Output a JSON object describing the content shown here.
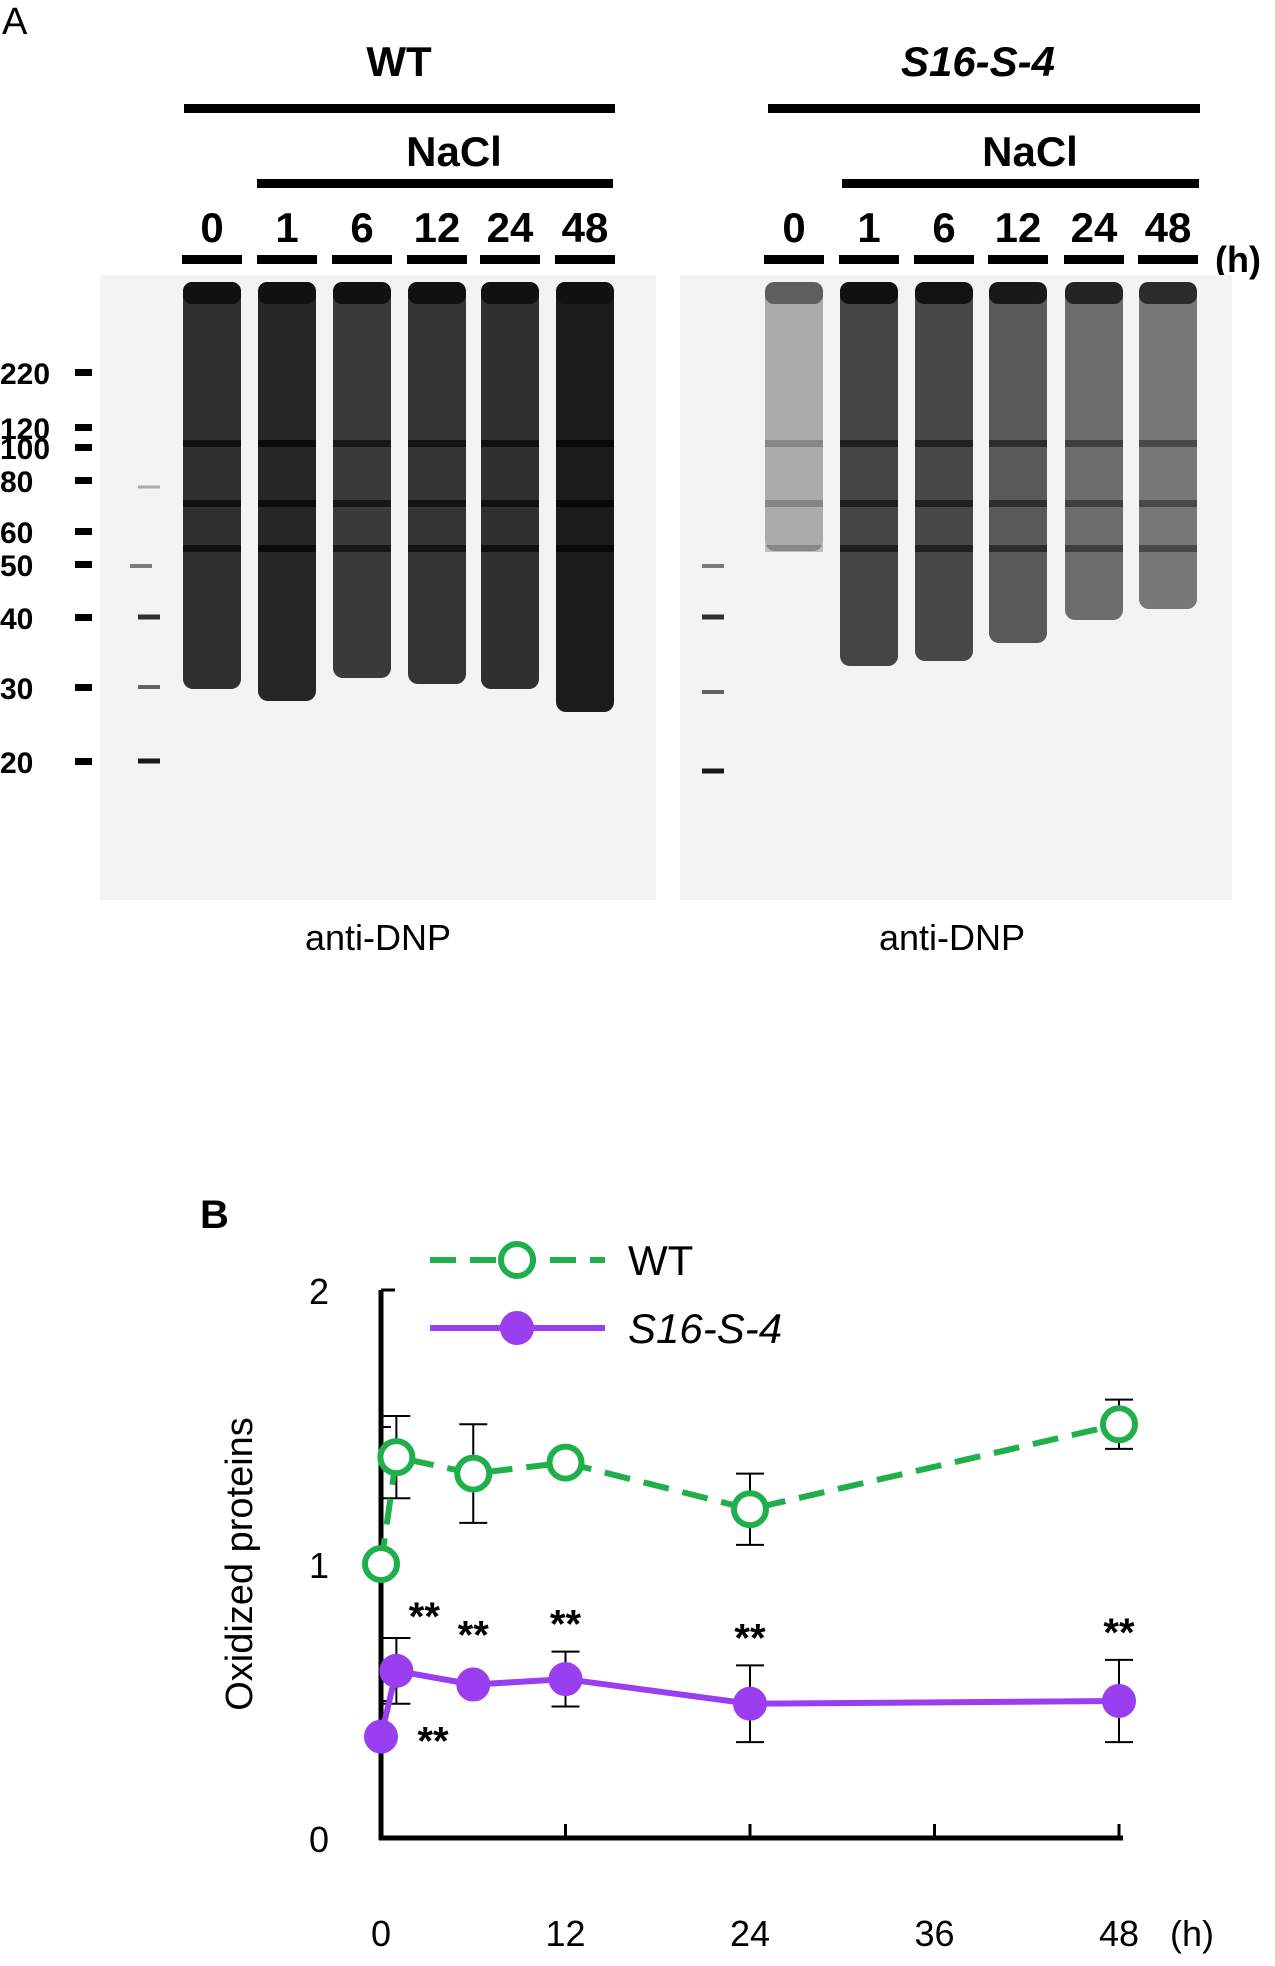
{
  "panel_a": {
    "panel_label": "A",
    "hours_unit": "(h)",
    "left_blot": {
      "genotype": "WT",
      "treatment": "NaCl",
      "lanes": [
        "0",
        "1",
        "6",
        "12",
        "24",
        "48"
      ],
      "antibody": "anti-DNP",
      "intensity": [
        0.9,
        0.95,
        0.85,
        0.88,
        0.9,
        1.0
      ]
    },
    "right_blot": {
      "genotype": "S16-S-4",
      "treatment": "NaCl",
      "lanes": [
        "0",
        "1",
        "6",
        "12",
        "24",
        "48"
      ],
      "antibody": "anti-DNP",
      "intensity": [
        0.3,
        0.8,
        0.78,
        0.7,
        0.6,
        0.55
      ]
    },
    "marker_labels": [
      "220",
      "120",
      "100",
      "80",
      "60",
      "50",
      "40",
      "30",
      "20"
    ]
  },
  "chart_data": {
    "type": "line",
    "panel_label": "B",
    "ylabel": "Oxidized proteins",
    "xunit": "(h)",
    "xticks": [
      0,
      12,
      24,
      36,
      48
    ],
    "yticks": [
      0,
      1,
      2
    ],
    "xlim": [
      0,
      48
    ],
    "ylim": [
      0,
      2
    ],
    "colors": {
      "WT": "#1fb04b",
      "S16-S-4": "#9a3ff0"
    },
    "series": [
      {
        "name": "WT",
        "style": "dashed-open-circle",
        "x": [
          0,
          1,
          6,
          12,
          24,
          48
        ],
        "y": [
          1.0,
          1.39,
          1.33,
          1.37,
          1.2,
          1.51
        ],
        "err": [
          0,
          0.15,
          0.18,
          0.02,
          0.13,
          0.09
        ]
      },
      {
        "name": "S16-S-4",
        "style": "solid-filled-circle",
        "x": [
          0,
          1,
          6,
          12,
          24,
          48
        ],
        "y": [
          0.37,
          0.61,
          0.56,
          0.58,
          0.49,
          0.5
        ],
        "err": [
          0,
          0.12,
          0,
          0.1,
          0.14,
          0.15
        ],
        "annotations": [
          "**",
          "**",
          "**",
          "**",
          "**",
          "**"
        ]
      }
    ]
  }
}
